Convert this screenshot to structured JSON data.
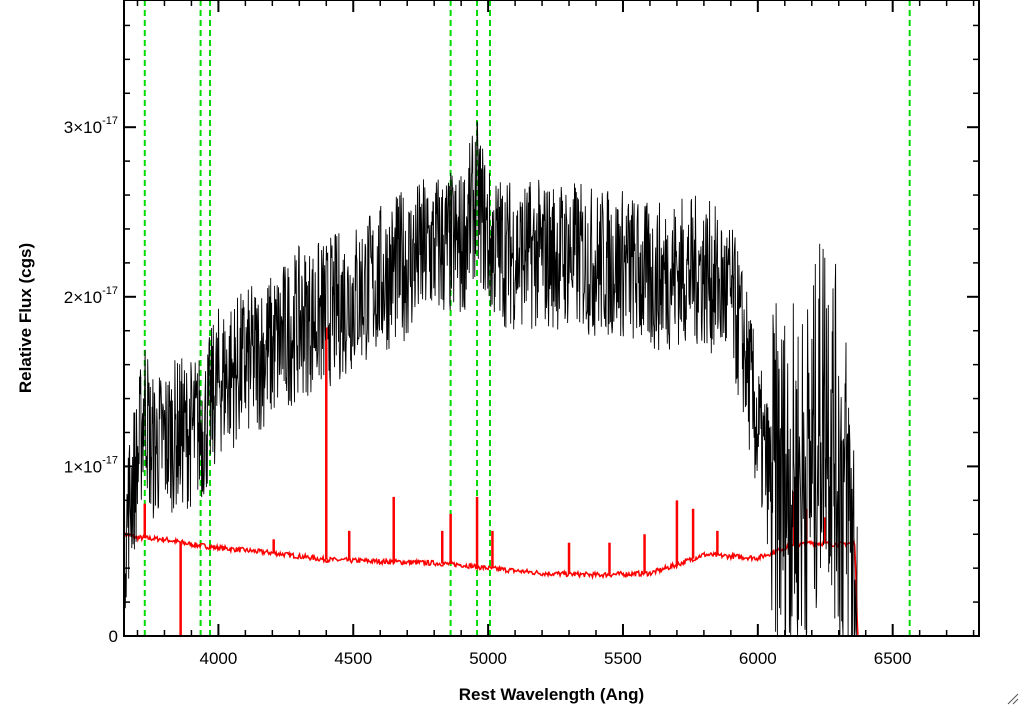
{
  "chart_data": {
    "type": "line",
    "title": "",
    "xlabel": "Rest Wavelength (Ang)",
    "ylabel": "Relative Flux (cgs)",
    "xlim": [
      3650,
      6820
    ],
    "ylim": [
      0,
      3.75e-17
    ],
    "x_ticks": [
      4000,
      4500,
      5000,
      5500,
      6000,
      6500
    ],
    "x_tick_labels": [
      "4000",
      "4500",
      "5000",
      "5500",
      "6000",
      "6500"
    ],
    "y_ticks": [
      0,
      1e-17,
      2e-17,
      3e-17
    ],
    "y_tick_labels": [
      {
        "mantissa": "0",
        "exponent": ""
      },
      {
        "mantissa": "1×10",
        "exponent": "-17"
      },
      {
        "mantissa": "2×10",
        "exponent": "-17"
      },
      {
        "mantissa": "3×10",
        "exponent": "-17"
      }
    ],
    "series": [
      {
        "color": "#000000",
        "x": [
          3650,
          3680,
          3700,
          3727,
          3750,
          3800,
          3850,
          3900,
          3950,
          4000,
          4100,
          4200,
          4300,
          4400,
          4500,
          4600,
          4700,
          4800,
          4861,
          4900,
          4959,
          5007,
          5100,
          5200,
          5300,
          5400,
          5500,
          5600,
          5700,
          5800,
          5900,
          5950,
          6000,
          6050,
          6100,
          6150,
          6200,
          6250,
          6300,
          6350,
          6370
        ],
        "y": [
          5.5e-18,
          9e-18,
          1e-17,
          1.4e-17,
          1.1e-17,
          1.15e-17,
          1.2e-17,
          1.2e-17,
          1.25e-17,
          1.5e-17,
          1.6e-17,
          1.7e-17,
          1.85e-17,
          1.9e-17,
          2e-17,
          2.1e-17,
          2.2e-17,
          2.3e-17,
          2.3e-17,
          2.3e-17,
          2.6e-17,
          2.3e-17,
          2.25e-17,
          2.25e-17,
          2.25e-17,
          2.2e-17,
          2.2e-17,
          2.1e-17,
          2.15e-17,
          2.15e-17,
          2e-17,
          1.7e-17,
          1.2e-17,
          9e-18,
          9e-18,
          9e-18,
          1e-17,
          1.5e-17,
          1e-17,
          6e-18,
          0.0
        ],
        "noise": 4.5e-18
      },
      {
        "color": "#ff0000",
        "x": [
          3650,
          3700,
          3800,
          3900,
          4000,
          4200,
          4400,
          4600,
          4800,
          4900,
          5000,
          5200,
          5400,
          5600,
          5700,
          5800,
          5900,
          6000,
          6100,
          6200,
          6300,
          6360,
          6370,
          6820
        ],
        "y": [
          6e-18,
          5.8e-18,
          5.7e-18,
          5.4e-18,
          5.2e-18,
          4.9e-18,
          4.5e-18,
          4.4e-18,
          4.3e-18,
          4.2e-18,
          4e-18,
          3.7e-18,
          3.6e-18,
          3.7e-18,
          4.2e-18,
          4.8e-18,
          4.7e-18,
          4.6e-18,
          5.2e-18,
          5.5e-18,
          5.4e-18,
          5.5e-18,
          0.0,
          0.0
        ],
        "spikes": [
          [
            3727,
            7.8e-18
          ],
          [
            3860,
            0.0
          ],
          [
            4205,
            5.7e-18
          ],
          [
            4400,
            1.82e-17
          ],
          [
            4485,
            6.2e-18
          ],
          [
            4650,
            8.2e-18
          ],
          [
            4830,
            6.2e-18
          ],
          [
            4861,
            7.2e-18
          ],
          [
            4959,
            8.2e-18
          ],
          [
            5016,
            6.2e-18
          ],
          [
            5300,
            5.5e-18
          ],
          [
            5450,
            5.5e-18
          ],
          [
            5580,
            6e-18
          ],
          [
            5700,
            8e-18
          ],
          [
            5760,
            7.5e-18
          ],
          [
            5850,
            6.2e-18
          ],
          [
            6135,
            8.5e-18
          ],
          [
            6180,
            7.5e-18
          ],
          [
            6250,
            7e-18
          ]
        ]
      }
    ],
    "reference_lines": {
      "color": "#00dd00",
      "style": "dashed",
      "x": [
        3727,
        3934,
        3969,
        4861,
        4959,
        5007,
        6563
      ]
    },
    "colors": {
      "axes": "#000000",
      "spectrum": "#000000",
      "model": "#ff0000",
      "lines": "#00dd00"
    }
  }
}
